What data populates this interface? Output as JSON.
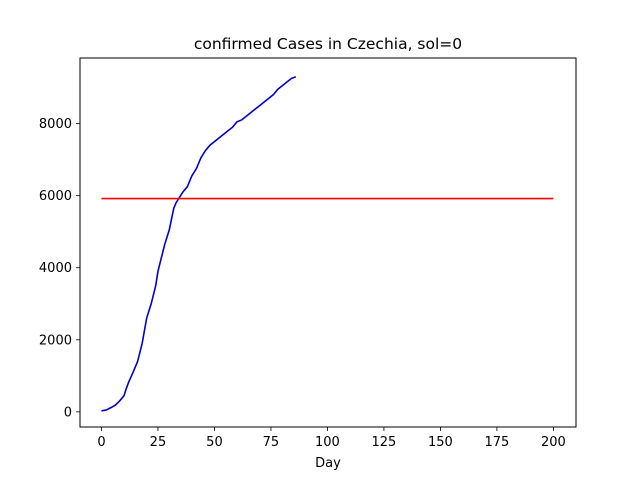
{
  "chart_data": {
    "type": "line",
    "title": "confirmed Cases in Czechia, sol=0",
    "xlabel": "Day",
    "ylabel": "",
    "xlim": [
      -9.5,
      210
    ],
    "ylim": [
      -420,
      9820
    ],
    "x_ticks": [
      0,
      25,
      50,
      75,
      100,
      125,
      150,
      175,
      200
    ],
    "y_ticks": [
      0,
      2000,
      4000,
      6000,
      8000
    ],
    "grid": false,
    "series": [
      {
        "color": "#0000cc",
        "x": [
          0,
          2,
          4,
          6,
          8,
          10,
          11,
          12,
          14,
          16,
          18,
          20,
          22,
          24,
          25,
          26,
          28,
          30,
          31,
          32,
          33,
          34,
          36,
          38,
          40,
          42,
          44,
          46,
          48,
          50,
          52,
          54,
          56,
          58,
          60,
          62,
          64,
          66,
          68,
          70,
          72,
          74,
          76,
          78,
          80,
          82,
          84,
          86
        ],
        "y": [
          30,
          50,
          110,
          180,
          300,
          450,
          650,
          820,
          1100,
          1400,
          1900,
          2600,
          3000,
          3500,
          3900,
          4150,
          4650,
          5050,
          5350,
          5650,
          5800,
          5900,
          6100,
          6250,
          6550,
          6750,
          7050,
          7250,
          7400,
          7500,
          7600,
          7700,
          7800,
          7900,
          8050,
          8100,
          8200,
          8300,
          8400,
          8500,
          8600,
          8700,
          8800,
          8950,
          9050,
          9150,
          9250,
          9300
        ]
      },
      {
        "color": "#ff0000",
        "x": [
          0,
          200
        ],
        "y": [
          5920,
          5920
        ]
      }
    ]
  }
}
